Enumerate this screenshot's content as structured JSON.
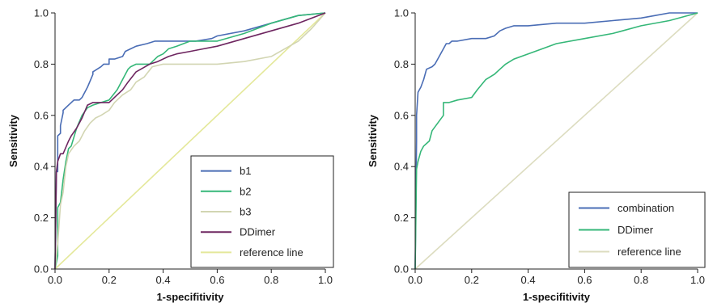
{
  "chart_data": [
    {
      "type": "line",
      "xlabel": "1-specifitivity",
      "ylabel": "Sensitivity",
      "xlim": [
        0,
        1
      ],
      "ylim": [
        0,
        1
      ],
      "x_ticks": [
        "0.0",
        "0.2",
        "0.4",
        "0.6",
        "0.8",
        "1.0"
      ],
      "y_ticks": [
        "0.0",
        "0.2",
        "0.4",
        "0.6",
        "0.8",
        "1.0"
      ],
      "grid": false,
      "legend_position": "bottom-right",
      "series": [
        {
          "name": "b1",
          "color": "#4a6db5",
          "x": [
            0,
            0.005,
            0.01,
            0.01,
            0.02,
            0.02,
            0.03,
            0.03,
            0.05,
            0.07,
            0.09,
            0.1,
            0.12,
            0.14,
            0.14,
            0.17,
            0.18,
            0.2,
            0.2,
            0.22,
            0.25,
            0.26,
            0.28,
            0.3,
            0.34,
            0.37,
            0.45,
            0.52,
            0.58,
            0.6,
            0.7,
            0.8,
            0.9,
            1.0
          ],
          "y": [
            0,
            0.38,
            0.38,
            0.52,
            0.53,
            0.56,
            0.61,
            0.62,
            0.64,
            0.66,
            0.66,
            0.67,
            0.71,
            0.76,
            0.77,
            0.79,
            0.8,
            0.8,
            0.82,
            0.82,
            0.83,
            0.85,
            0.86,
            0.87,
            0.88,
            0.89,
            0.89,
            0.89,
            0.9,
            0.91,
            0.93,
            0.96,
            0.99,
            1.0
          ]
        },
        {
          "name": "b2",
          "color": "#35b778",
          "x": [
            0,
            0.01,
            0.01,
            0.02,
            0.03,
            0.04,
            0.05,
            0.06,
            0.08,
            0.1,
            0.12,
            0.14,
            0.17,
            0.2,
            0.23,
            0.25,
            0.27,
            0.28,
            0.3,
            0.35,
            0.38,
            0.4,
            0.42,
            0.45,
            0.5,
            0.6,
            0.7,
            0.8,
            0.9,
            1.0
          ],
          "y": [
            0,
            0.05,
            0.24,
            0.26,
            0.35,
            0.42,
            0.47,
            0.48,
            0.55,
            0.6,
            0.63,
            0.64,
            0.65,
            0.66,
            0.7,
            0.74,
            0.78,
            0.79,
            0.8,
            0.8,
            0.83,
            0.84,
            0.86,
            0.87,
            0.89,
            0.89,
            0.92,
            0.96,
            0.99,
            1.0
          ]
        },
        {
          "name": "b3",
          "color": "#d2d5b2",
          "x": [
            0,
            0.01,
            0.02,
            0.03,
            0.04,
            0.05,
            0.07,
            0.09,
            0.11,
            0.13,
            0.15,
            0.17,
            0.2,
            0.22,
            0.25,
            0.28,
            0.3,
            0.33,
            0.36,
            0.4,
            0.5,
            0.6,
            0.7,
            0.8,
            0.85,
            0.9,
            0.95,
            1.0
          ],
          "y": [
            0,
            0.1,
            0.25,
            0.3,
            0.4,
            0.45,
            0.48,
            0.5,
            0.54,
            0.57,
            0.59,
            0.6,
            0.62,
            0.65,
            0.68,
            0.7,
            0.73,
            0.75,
            0.79,
            0.8,
            0.8,
            0.8,
            0.81,
            0.83,
            0.86,
            0.89,
            0.94,
            1.0
          ]
        },
        {
          "name": "DDimer",
          "color": "#6e2660",
          "x": [
            0,
            0.005,
            0.01,
            0.02,
            0.03,
            0.05,
            0.06,
            0.08,
            0.1,
            0.12,
            0.14,
            0.16,
            0.2,
            0.25,
            0.27,
            0.3,
            0.35,
            0.38,
            0.42,
            0.45,
            0.5,
            0.55,
            0.6,
            0.7,
            0.8,
            0.9,
            1.0
          ],
          "y": [
            0,
            0.38,
            0.42,
            0.45,
            0.45,
            0.5,
            0.52,
            0.55,
            0.59,
            0.64,
            0.65,
            0.65,
            0.65,
            0.7,
            0.73,
            0.77,
            0.8,
            0.81,
            0.83,
            0.84,
            0.85,
            0.86,
            0.87,
            0.9,
            0.93,
            0.96,
            1.0
          ]
        },
        {
          "name": "reference line",
          "color": "#e4e89a",
          "x": [
            0,
            1
          ],
          "y": [
            0,
            1
          ]
        }
      ]
    },
    {
      "type": "line",
      "xlabel": "1-specifitivity",
      "ylabel": "Sensitivity",
      "xlim": [
        0,
        1
      ],
      "ylim": [
        0,
        1
      ],
      "x_ticks": [
        "0.0",
        "0.2",
        "0.4",
        "0.6",
        "0.8",
        "1.0"
      ],
      "y_ticks": [
        "0.0",
        "0.2",
        "0.4",
        "0.6",
        "0.8",
        "1.0"
      ],
      "grid": false,
      "legend_position": "bottom-right",
      "series": [
        {
          "name": "combination",
          "color": "#4a6db5",
          "x": [
            0,
            0.005,
            0.005,
            0.01,
            0.015,
            0.02,
            0.03,
            0.04,
            0.06,
            0.07,
            0.08,
            0.09,
            0.1,
            0.11,
            0.12,
            0.13,
            0.15,
            0.2,
            0.25,
            0.28,
            0.3,
            0.32,
            0.35,
            0.4,
            0.5,
            0.6,
            0.7,
            0.8,
            0.85,
            0.9,
            0.95,
            1.0
          ],
          "y": [
            0,
            0.5,
            0.6,
            0.69,
            0.7,
            0.71,
            0.74,
            0.78,
            0.79,
            0.8,
            0.82,
            0.84,
            0.86,
            0.88,
            0.88,
            0.89,
            0.89,
            0.9,
            0.9,
            0.91,
            0.93,
            0.94,
            0.95,
            0.95,
            0.96,
            0.96,
            0.97,
            0.98,
            0.99,
            1.0,
            1.0,
            1.0
          ]
        },
        {
          "name": "DDimer",
          "color": "#35b778",
          "x": [
            0,
            0.005,
            0.01,
            0.02,
            0.03,
            0.05,
            0.06,
            0.08,
            0.1,
            0.1,
            0.12,
            0.15,
            0.2,
            0.22,
            0.25,
            0.28,
            0.3,
            0.32,
            0.35,
            0.4,
            0.45,
            0.5,
            0.6,
            0.7,
            0.8,
            0.9,
            1.0
          ],
          "y": [
            0,
            0.39,
            0.42,
            0.46,
            0.48,
            0.5,
            0.54,
            0.57,
            0.6,
            0.65,
            0.65,
            0.66,
            0.67,
            0.7,
            0.74,
            0.76,
            0.78,
            0.8,
            0.82,
            0.84,
            0.86,
            0.88,
            0.9,
            0.92,
            0.95,
            0.97,
            1.0
          ]
        },
        {
          "name": "reference line",
          "color": "#dcdcbf",
          "x": [
            0,
            1
          ],
          "y": [
            0,
            1
          ]
        }
      ]
    }
  ]
}
